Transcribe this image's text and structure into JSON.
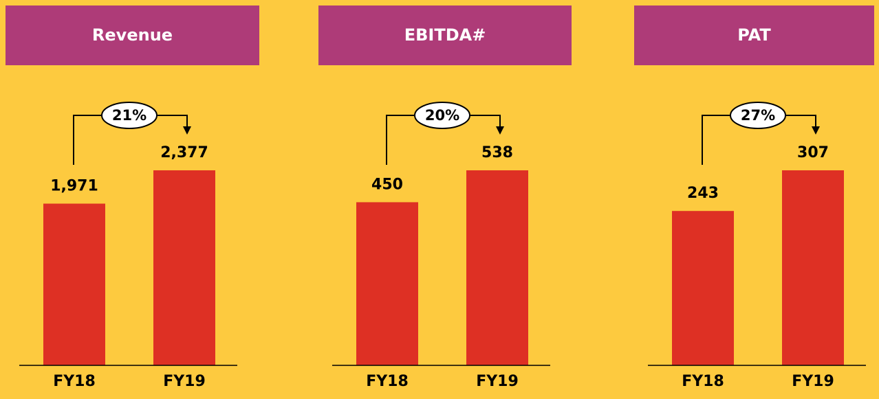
{
  "chart_data": [
    {
      "type": "bar",
      "title": "Revenue",
      "categories": [
        "FY18",
        "FY19"
      ],
      "values": [
        1971,
        2377
      ],
      "value_labels": [
        "1,971",
        "2,377"
      ],
      "annotation": "21%",
      "color": "#de3024",
      "header_color": "#ae3b78"
    },
    {
      "type": "bar",
      "title": "EBITDA#",
      "categories": [
        "FY18",
        "FY19"
      ],
      "values": [
        450,
        538
      ],
      "annotation": "20%",
      "color": "#de3024",
      "header_color": "#ae3b78"
    },
    {
      "type": "bar",
      "title": "PAT",
      "categories": [
        "FY18",
        "FY19"
      ],
      "values": [
        243,
        307
      ],
      "annotation": "27%",
      "color": "#de3024",
      "header_color": "#ae3b78"
    }
  ]
}
